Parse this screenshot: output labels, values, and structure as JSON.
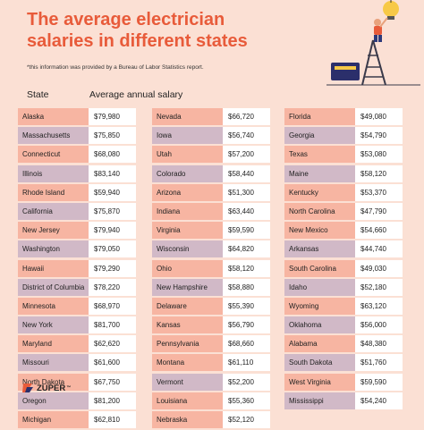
{
  "title": "The average electrician salaries in different states",
  "note": "*this information was provided by a Bureau of Labor Statistics report.",
  "headers": {
    "state": "State",
    "salary": "Average annual salary"
  },
  "logo": {
    "text": "ZUPER",
    "tm": "™"
  },
  "colors": {
    "title": "#e85b3a",
    "row_a": "#f7b5a2",
    "row_b": "#d1b9c7",
    "background": "#fbe0d4"
  },
  "chart_data": {
    "type": "table",
    "title": "The average electrician salaries in different states",
    "columns": [
      "State",
      "Average annual salary"
    ],
    "rows": [
      [
        "Alaska",
        "$79,980"
      ],
      [
        "Massachusetts",
        "$75,850"
      ],
      [
        "Connecticut",
        "$68,080"
      ],
      [
        "Illinois",
        "$83,140"
      ],
      [
        "Rhode Island",
        "$59,940"
      ],
      [
        "California",
        "$75,870"
      ],
      [
        "New Jersey",
        "$79,940"
      ],
      [
        "Washington",
        "$79,050"
      ],
      [
        "Hawaii",
        "$79,290"
      ],
      [
        "District of Columbia",
        "$78,220"
      ],
      [
        "Minnesota",
        "$68,970"
      ],
      [
        "New York",
        "$81,700"
      ],
      [
        "Maryland",
        "$62,620"
      ],
      [
        "Missouri",
        "$61,600"
      ],
      [
        "North Dakota",
        "$67,750"
      ],
      [
        "Oregon",
        "$81,200"
      ],
      [
        "Michigan",
        "$62,810"
      ],
      [
        "Nevada",
        "$66,720"
      ],
      [
        "Iowa",
        "$56,740"
      ],
      [
        "Utah",
        "$57,200"
      ],
      [
        "Colorado",
        "$58,440"
      ],
      [
        "Arizona",
        "$51,300"
      ],
      [
        "Indiana",
        "$63,440"
      ],
      [
        "Virginia",
        "$59,590"
      ],
      [
        "Wisconsin",
        "$64,820"
      ],
      [
        "Ohio",
        "$58,120"
      ],
      [
        "New Hampshire",
        "$58,880"
      ],
      [
        "Delaware",
        "$55,390"
      ],
      [
        "Kansas",
        "$56,790"
      ],
      [
        "Pennsylvania",
        "$68,660"
      ],
      [
        "Montana",
        "$61,110"
      ],
      [
        "Vermont",
        "$52,200"
      ],
      [
        "Louisiana",
        "$55,360"
      ],
      [
        "Nebraska",
        "$52,120"
      ],
      [
        "Florida",
        "$49,080"
      ],
      [
        "Georgia",
        "$54,790"
      ],
      [
        "Texas",
        "$53,080"
      ],
      [
        "Maine",
        "$58,120"
      ],
      [
        "Kentucky",
        "$53,370"
      ],
      [
        "North Carolina",
        "$47,790"
      ],
      [
        "New Mexico",
        "$54,660"
      ],
      [
        "Arkansas",
        "$44,740"
      ],
      [
        "South Carolina",
        "$49,030"
      ],
      [
        "Idaho",
        "$52,180"
      ],
      [
        "Wyoming",
        "$63,120"
      ],
      [
        "Oklahoma",
        "$56,000"
      ],
      [
        "Alabama",
        "$48,380"
      ],
      [
        "South Dakota",
        "$51,760"
      ],
      [
        "West Virginia",
        "$59,590"
      ],
      [
        "Mississippi",
        "$54,240"
      ]
    ],
    "column_groups": [
      [
        0,
        17
      ],
      [
        17,
        34
      ],
      [
        34,
        50
      ]
    ],
    "row_shading": [
      [
        "a",
        "b",
        "a",
        "b",
        "a",
        "b",
        "a",
        "b",
        "a",
        "b",
        "a",
        "b",
        "a",
        "b",
        "a",
        "b",
        "a"
      ],
      [
        "a",
        "b",
        "a",
        "b",
        "a",
        "a",
        "a",
        "b",
        "a",
        "b",
        "a",
        "a",
        "a",
        "a",
        "b",
        "a",
        "a"
      ],
      [
        "a",
        "b",
        "a",
        "b",
        "a",
        "a",
        "a",
        "b",
        "a",
        "b",
        "a",
        "b",
        "a",
        "b",
        "a",
        "b"
      ]
    ]
  }
}
